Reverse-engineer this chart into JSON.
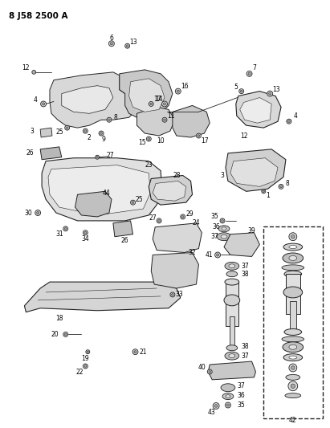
{
  "title": "8 J58 2500 A",
  "background_color": "#ffffff",
  "fig_width": 4.11,
  "fig_height": 5.33,
  "dpi": 100,
  "line_color": "#222222",
  "part_fill": "#e8e8e8",
  "part_fill2": "#d0d0d0",
  "part_fill3": "#c0c0c0"
}
